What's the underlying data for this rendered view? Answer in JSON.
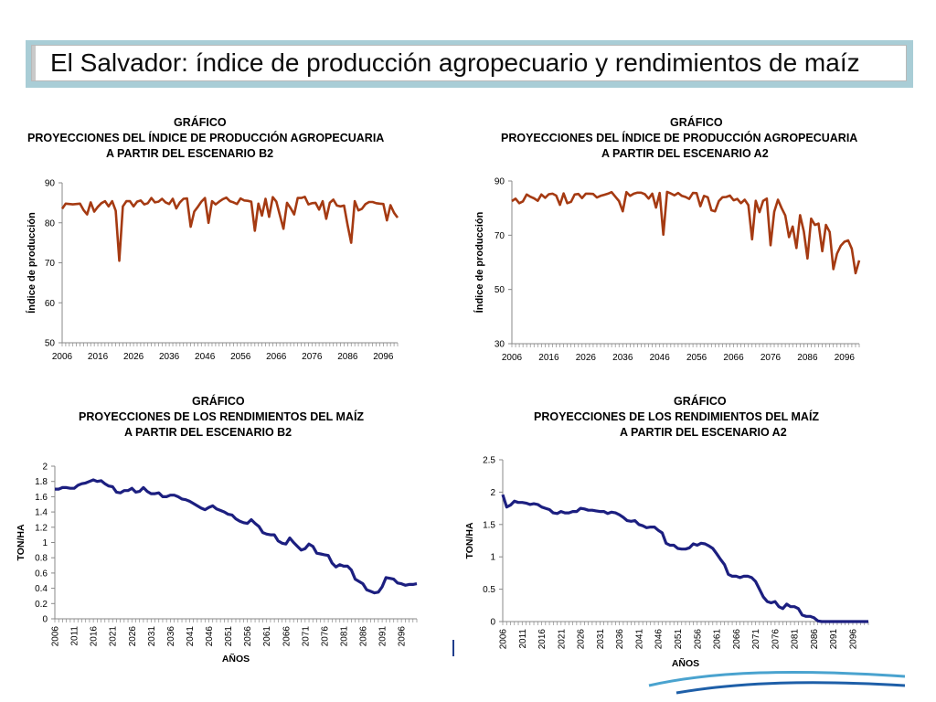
{
  "page_title": "El Salvador: índice de producción agropecuario y rendimientos de maíz",
  "colors": {
    "banner_bg": "#a9cdd6",
    "index_line": "#a53a12",
    "yield_line": "#1c1f80"
  },
  "chart_data": [
    {
      "id": "c1",
      "type": "line",
      "title": [
        "GRÁFICO",
        "PROYECCIONES DEL ÍNDICE DE PRODUCCIÓN AGROPECUARIA",
        "A PARTIR DEL ESCENARIO B2"
      ],
      "ylabel": "Índice de producción",
      "xlabel": "",
      "ylim": [
        50,
        90
      ],
      "yticks": [
        50,
        60,
        70,
        80,
        90
      ],
      "xlim": [
        2006,
        2100
      ],
      "xticks": [
        "2006",
        "2016",
        "2026",
        "2036",
        "2046",
        "2056",
        "2066",
        "2076",
        "2086",
        "2096"
      ],
      "color": "#a53a12",
      "x_start": 2006,
      "values": [
        83.5,
        84.8,
        84.7,
        84.6,
        84.7,
        84.8,
        83.2,
        82.1,
        85.1,
        82.8,
        84.0,
        84.9,
        85.4,
        84.1,
        85.4,
        83.0,
        70.5,
        84.1,
        85.4,
        85.4,
        84.1,
        85.3,
        85.6,
        84.6,
        84.9,
        86.2,
        85.1,
        85.3,
        86.0,
        85.1,
        84.7,
        86.0,
        83.6,
        85.1,
        86.0,
        86.1,
        79.0,
        82.8,
        84.0,
        85.3,
        86.2,
        80.0,
        85.4,
        84.6,
        85.3,
        85.9,
        86.3,
        85.4,
        85.1,
        84.7,
        86.1,
        85.6,
        85.5,
        85.3,
        78.0,
        84.8,
        81.8,
        86.0,
        81.5,
        86.4,
        85.3,
        81.9,
        78.5,
        85.0,
        83.7,
        82.1,
        86.2,
        86.2,
        86.5,
        84.6,
        84.9,
        85.0,
        83.3,
        85.4,
        81.0,
        85.0,
        85.8,
        84.3,
        84.1,
        84.3,
        79.4,
        75.0,
        85.4,
        83.1,
        83.5,
        84.7,
        85.2,
        85.2,
        84.9,
        84.8,
        84.7,
        80.6,
        84.4,
        82.5,
        81.3
      ]
    },
    {
      "id": "c2",
      "type": "line",
      "title": [
        "GRÁFICO",
        "PROYECCIONES DEL ÍNDICE DE PRODUCCIÓN AGROPECUARIA",
        "A PARTIR DEL ESCENARIO A2"
      ],
      "ylabel": "Índice de producción",
      "xlabel": "",
      "ylim": [
        30,
        90
      ],
      "yticks": [
        30,
        50,
        70,
        90
      ],
      "xlim": [
        2006,
        2100
      ],
      "xticks": [
        "2006",
        "2016",
        "2026",
        "2036",
        "2046",
        "2056",
        "2066",
        "2076",
        "2086",
        "2096"
      ],
      "color": "#a53a12",
      "x_start": 2006,
      "values": [
        82.6,
        83.5,
        81.8,
        82.5,
        85.0,
        84.2,
        83.6,
        82.7,
        85.0,
        83.8,
        85.1,
        85.3,
        84.6,
        81.2,
        85.4,
        81.8,
        82.3,
        85.0,
        85.2,
        83.7,
        85.3,
        85.3,
        85.2,
        83.9,
        84.5,
        84.9,
        85.3,
        85.9,
        84.2,
        82.6,
        78.8,
        85.9,
        84.5,
        85.3,
        85.7,
        85.7,
        85.1,
        83.5,
        85.3,
        80.2,
        85.6,
        70.2,
        86.0,
        85.4,
        84.7,
        85.6,
        84.5,
        84.1,
        83.4,
        85.6,
        85.5,
        80.7,
        84.5,
        84.0,
        79.2,
        78.8,
        82.6,
        84.0,
        84.1,
        84.6,
        82.9,
        83.4,
        81.8,
        83.1,
        81.1,
        68.5,
        82.7,
        78.5,
        82.7,
        83.5,
        66.3,
        78.6,
        83.1,
        80.0,
        77.3,
        69.3,
        73.2,
        65.3,
        77.4,
        71.4,
        61.4,
        76.1,
        73.8,
        74.3,
        64.1,
        73.8,
        71.2,
        57.5,
        63.2,
        66.1,
        67.6,
        68.1,
        65.0,
        56.0,
        60.7
      ]
    },
    {
      "id": "c3",
      "type": "line",
      "title": [
        "GRÁFICO",
        "PROYECCIONES DE LOS RENDIMIENTOS DEL MAÍZ",
        "A PARTIR DEL ESCENARIO B2"
      ],
      "ylabel": "TON/HA",
      "xlabel": "AÑOS",
      "ylim": [
        0,
        2
      ],
      "yticks": [
        "0",
        "0.2",
        "0.4",
        "0.6",
        "0.8",
        "1",
        "1.2",
        "1.4",
        "1.6",
        "1.8",
        "2"
      ],
      "xlim": [
        2006,
        2100
      ],
      "xticks": [
        "2006",
        "2011",
        "2016",
        "2021",
        "2026",
        "2031",
        "2036",
        "2041",
        "2046",
        "2051",
        "2056",
        "2061",
        "2066",
        "2071",
        "2076",
        "2081",
        "2086",
        "2091",
        "2096"
      ],
      "color": "#1c1f80",
      "x_start": 2006,
      "values": [
        1.7,
        1.7,
        1.72,
        1.72,
        1.71,
        1.71,
        1.75,
        1.77,
        1.78,
        1.8,
        1.82,
        1.8,
        1.81,
        1.77,
        1.74,
        1.73,
        1.66,
        1.65,
        1.68,
        1.68,
        1.71,
        1.66,
        1.67,
        1.72,
        1.67,
        1.64,
        1.64,
        1.65,
        1.6,
        1.6,
        1.62,
        1.62,
        1.6,
        1.57,
        1.56,
        1.54,
        1.51,
        1.48,
        1.45,
        1.43,
        1.46,
        1.48,
        1.44,
        1.42,
        1.4,
        1.37,
        1.36,
        1.31,
        1.28,
        1.26,
        1.25,
        1.3,
        1.25,
        1.21,
        1.13,
        1.11,
        1.1,
        1.1,
        1.02,
        0.99,
        0.98,
        1.06,
        1.0,
        0.95,
        0.9,
        0.92,
        0.98,
        0.95,
        0.86,
        0.85,
        0.84,
        0.83,
        0.73,
        0.68,
        0.71,
        0.69,
        0.69,
        0.64,
        0.52,
        0.49,
        0.46,
        0.38,
        0.36,
        0.34,
        0.35,
        0.42,
        0.54,
        0.53,
        0.52,
        0.47,
        0.46,
        0.44,
        0.45,
        0.45,
        0.46
      ]
    },
    {
      "id": "c4",
      "type": "line",
      "title": [
        "GRÁFICO",
        "PROYECCIONES DE LOS RENDIMIENTOS DEL MAÍZ",
        "A PARTIR DEL ESCENARIO A2"
      ],
      "ylabel": "TON/HA",
      "xlabel": "AÑOS",
      "ylim": [
        0,
        2.5
      ],
      "yticks": [
        "0",
        "0.5",
        "1",
        "1.5",
        "2",
        "2.5"
      ],
      "xlim": [
        2006,
        2100
      ],
      "xticks": [
        "2006",
        "2011",
        "2016",
        "2021",
        "2026",
        "2031",
        "2036",
        "2041",
        "2046",
        "2051",
        "2056",
        "2061",
        "2066",
        "2071",
        "2076",
        "2081",
        "2086",
        "2091",
        "2096"
      ],
      "color": "#1c1f80",
      "x_start": 2006,
      "values": [
        1.96,
        1.77,
        1.8,
        1.86,
        1.84,
        1.84,
        1.83,
        1.81,
        1.82,
        1.81,
        1.77,
        1.75,
        1.73,
        1.68,
        1.67,
        1.7,
        1.68,
        1.68,
        1.7,
        1.7,
        1.75,
        1.74,
        1.72,
        1.72,
        1.71,
        1.7,
        1.7,
        1.67,
        1.69,
        1.68,
        1.65,
        1.61,
        1.56,
        1.55,
        1.56,
        1.5,
        1.48,
        1.45,
        1.46,
        1.46,
        1.41,
        1.37,
        1.21,
        1.18,
        1.18,
        1.13,
        1.12,
        1.12,
        1.14,
        1.2,
        1.18,
        1.21,
        1.2,
        1.17,
        1.13,
        1.05,
        0.96,
        0.88,
        0.73,
        0.7,
        0.7,
        0.68,
        0.7,
        0.7,
        0.68,
        0.62,
        0.5,
        0.38,
        0.31,
        0.29,
        0.31,
        0.23,
        0.2,
        0.27,
        0.23,
        0.23,
        0.2,
        0.1,
        0.08,
        0.08,
        0.06,
        0.01,
        0.0,
        0.0,
        0.0,
        0.0,
        0.0,
        0.0,
        0.0,
        0.0,
        0.0,
        0.0,
        0.0,
        0.0,
        0.0
      ]
    }
  ]
}
